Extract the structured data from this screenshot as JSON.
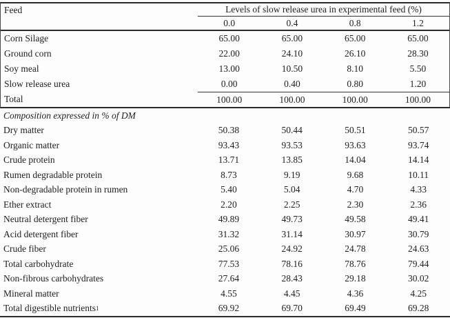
{
  "table": {
    "feed_header": "Feed",
    "span_header": "Levels of slow release urea in experimental feed (%)",
    "level_headers": [
      "0.0",
      "0.4",
      "0.8",
      "1.2"
    ],
    "ingredient_rows": [
      {
        "label": "Corn Silage",
        "values": [
          "65.00",
          "65.00",
          "65.00",
          "65.00"
        ]
      },
      {
        "label": "Ground corn",
        "values": [
          "22.00",
          "24.10",
          "26.10",
          "28.30"
        ]
      },
      {
        "label": "Soy meal",
        "values": [
          "13.00",
          "10.50",
          "8.10",
          "5.50"
        ]
      },
      {
        "label": "Slow release urea",
        "values": [
          "0.00",
          "0.40",
          "0.80",
          "1.20"
        ]
      }
    ],
    "total_row": {
      "label": "Total",
      "values": [
        "100.00",
        "100.00",
        "100.00",
        "100.00"
      ]
    },
    "section_header": "Composition expressed in % of DM",
    "composition_rows": [
      {
        "label": "Dry matter",
        "values": [
          "50.38",
          "50.44",
          "50.51",
          "50.57"
        ]
      },
      {
        "label": "Organic matter",
        "values": [
          "93.43",
          "93.53",
          "93.63",
          "93.74"
        ]
      },
      {
        "label": "Crude protein",
        "values": [
          "13.71",
          "13.85",
          "14.04",
          "14.14"
        ]
      },
      {
        "label": "Rumen degradable protein",
        "values": [
          "8.73",
          "9.19",
          "9.68",
          "10.11"
        ]
      },
      {
        "label": "Non-degradable protein in rumen",
        "values": [
          "5.40",
          "5.04",
          "4.70",
          "4.33"
        ]
      },
      {
        "label": "Ether extract",
        "values": [
          "2.20",
          "2.25",
          "2.30",
          "2.36"
        ]
      },
      {
        "label": "Neutral detergent fiber",
        "values": [
          "49.89",
          "49.73",
          "49.58",
          "49.41"
        ]
      },
      {
        "label": "Acid detergent fiber",
        "values": [
          "31.32",
          "31.14",
          "30.97",
          "30.79"
        ]
      },
      {
        "label": "Crude fiber",
        "values": [
          "25.06",
          "24.92",
          "24.78",
          "24.63"
        ]
      },
      {
        "label": "Total carbohydrate",
        "values": [
          "77.53",
          "78.16",
          "78.76",
          "79.44"
        ]
      },
      {
        "label": "Non-fibrous carbohydrates",
        "values": [
          "27.64",
          "28.43",
          "29.18",
          "30.02"
        ]
      },
      {
        "label": "Mineral matter",
        "values": [
          "4.55",
          "4.45",
          "4.36",
          "4.25"
        ]
      }
    ],
    "tdn_row": {
      "label": "Total digestible nutrients",
      "sup": "1",
      "values": [
        "69.92",
        "69.70",
        "69.49",
        "69.28"
      ]
    }
  },
  "colors": {
    "rule": "#2b2b2b",
    "text": "#212121",
    "background": "#fdfdfd"
  }
}
